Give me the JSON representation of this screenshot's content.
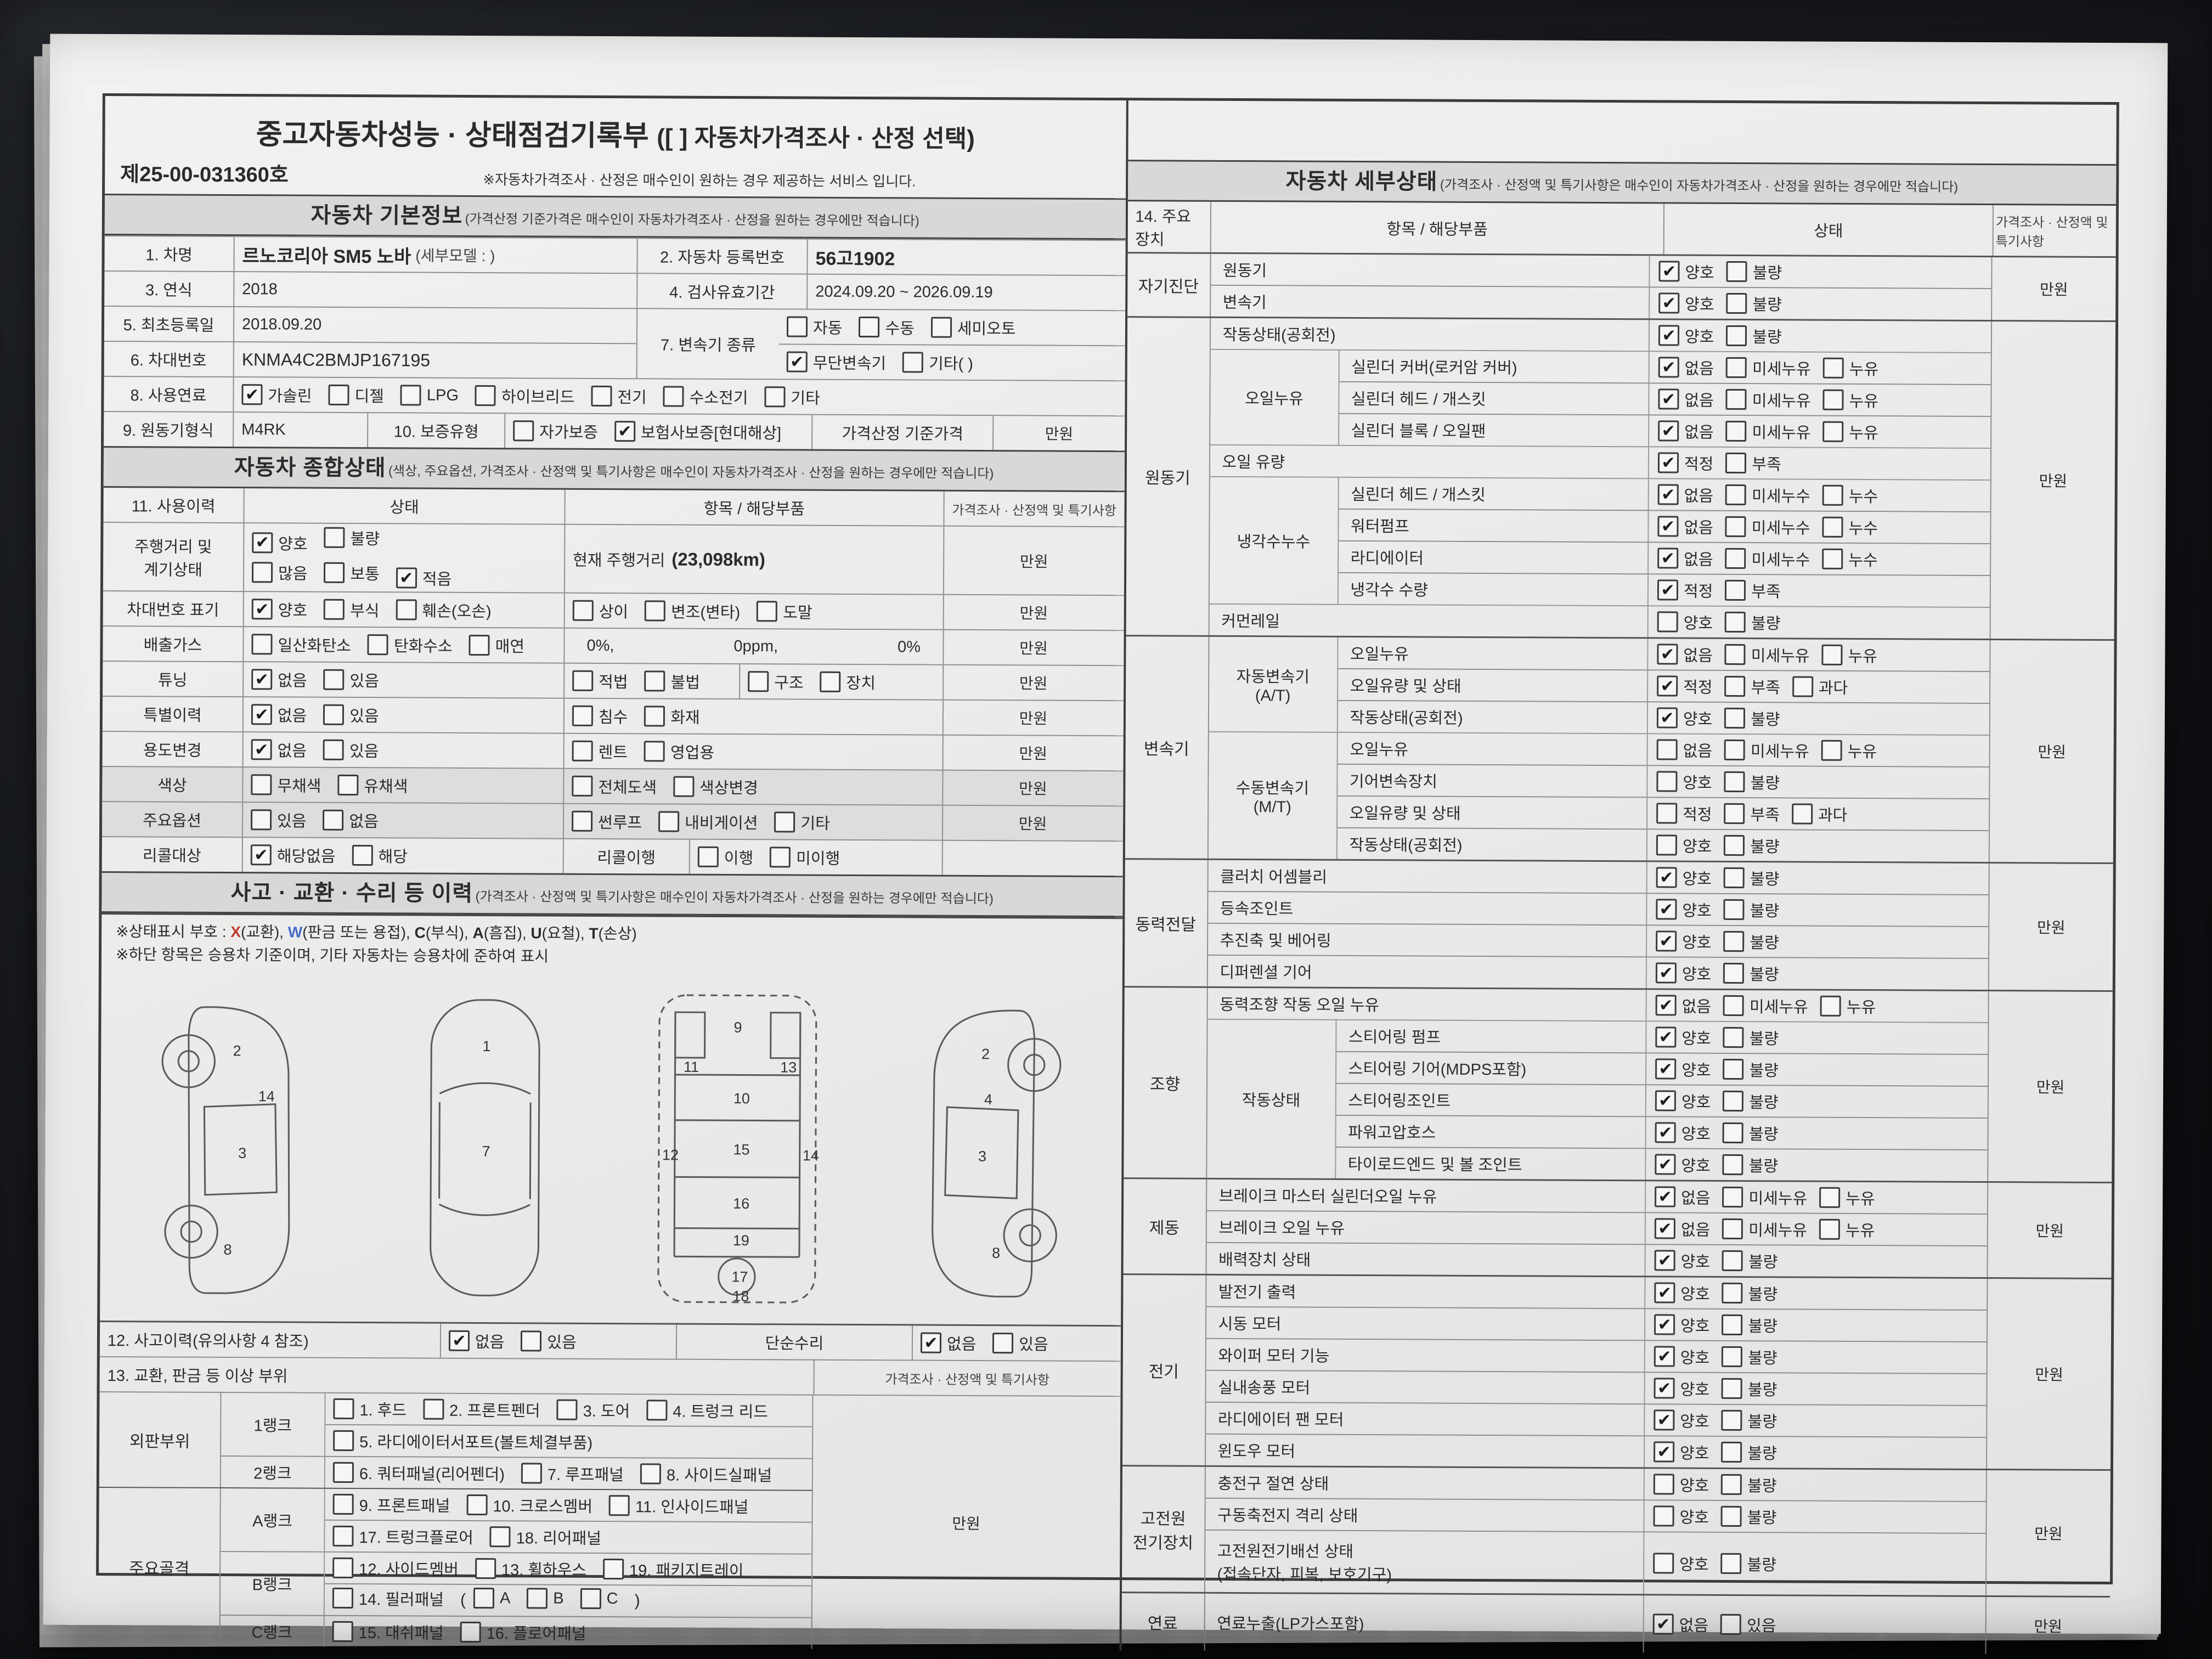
{
  "meta": {
    "doc_no": "제25-00-031360호",
    "title": "중고자동차성능 · 상태점검기록부",
    "title_bracket": "([  ] 자동차가격조사 · 산정 선택)",
    "service_note": "※자동차가격조사 · 산정은 매수인이 원하는 경우 제공하는 서비스 입니다.",
    "price_unit": "만원",
    "accent_red": "#c0392b",
    "accent_blue": "#4a6bc9",
    "paper_color": "#ededeb",
    "band_color": "#d8d8d6"
  },
  "basic": {
    "header": "자동차 기본정보",
    "header_note": "(가격산정 기준가격은 매수인이 자동차가격조사 · 산정을 원하는 경우에만 적습니다)",
    "car_name_label": "1. 차명",
    "car_name": "르노코리아 SM5 노바",
    "car_name_sub": "(세부모델 : )",
    "reg_label": "2. 자동차 등록번호",
    "reg_no": "56고1902",
    "year_label": "3. 연식",
    "year": "2018",
    "insp_label": "4. 검사유효기간",
    "insp": "2024.09.20 ~ 2026.09.19",
    "first_label": "5. 최초등록일",
    "first_reg": "2018.09.20",
    "vin_label": "6. 차대번호",
    "vin": "KNMA4C2BMJP167195",
    "trans_label": "7. 변속기 종류",
    "trans_opts1": [
      {
        "t": "자동",
        "c": false
      },
      {
        "t": "수동",
        "c": false
      },
      {
        "t": "세미오토",
        "c": false
      }
    ],
    "trans_opts2": [
      {
        "t": "무단변속기",
        "c": true
      },
      {
        "t": "기타(  )",
        "c": false
      }
    ],
    "fuel_label": "8. 사용연료",
    "fuel_opts": [
      {
        "t": "가솔린",
        "c": true
      },
      {
        "t": "디젤",
        "c": false
      },
      {
        "t": "LPG",
        "c": false
      },
      {
        "t": "하이브리드",
        "c": false
      },
      {
        "t": "전기",
        "c": false
      },
      {
        "t": "수소전기",
        "c": false
      },
      {
        "t": "기타",
        "c": false
      }
    ],
    "engine_label": "9. 원동기형식",
    "engine": "M4RK",
    "warranty_label": "10. 보증유형",
    "warranty_opts": [
      {
        "t": "자가보증",
        "c": false
      },
      {
        "t": "보험사보증[현대해상]",
        "c": true
      }
    ],
    "base_price_label": "가격산정 기준가격"
  },
  "comp": {
    "header": "자동차 종합상태",
    "header_note": "(색상, 주요옵션, 가격조사 · 산정액 및 특기사항은 매수인이 자동차가격조사 · 산정을 원하는 경우에만 적습니다)",
    "col1": "11. 사용이력",
    "col2": "상태",
    "col3": "항목 / 해당부품",
    "col4": "가격조사 · 산정액 및 특기사항",
    "mileage_label1": "주행거리 및",
    "mileage_label2": "계기상태",
    "mileage_opts1": [
      {
        "t": "양호",
        "c": true
      },
      {
        "t": "불량",
        "c": false
      }
    ],
    "mileage_opts2": [
      {
        "t": "많음",
        "c": false
      },
      {
        "t": "보통",
        "c": false
      },
      {
        "t": "적음",
        "c": true
      }
    ],
    "mileage_item_label": "현재 주행거리",
    "mileage_value": "(23,098km)",
    "vin_label": "차대번호 표기",
    "vin_opts1": [
      {
        "t": "양호",
        "c": true
      },
      {
        "t": "부식",
        "c": false
      },
      {
        "t": "훼손(오손)",
        "c": false
      }
    ],
    "vin_opts2": [
      {
        "t": "상이",
        "c": false
      },
      {
        "t": "변조(변타)",
        "c": false
      },
      {
        "t": "도말",
        "c": false
      }
    ],
    "emission_label": "배출가스",
    "emission_opts": [
      {
        "t": "일산화탄소",
        "c": false
      },
      {
        "t": "탄화수소",
        "c": false
      },
      {
        "t": "매연",
        "c": false
      }
    ],
    "emission_v1": "0%,",
    "emission_v2": "0ppm,",
    "emission_v3": "0%",
    "tuning_label": "튜닝",
    "tuning_opts": [
      {
        "t": "없음",
        "c": true
      },
      {
        "t": "있음",
        "c": false
      }
    ],
    "tuning_opts2": [
      {
        "t": "적법",
        "c": false
      },
      {
        "t": "불법",
        "c": false
      }
    ],
    "tuning_opts3": [
      {
        "t": "구조",
        "c": false
      },
      {
        "t": "장치",
        "c": false
      }
    ],
    "special_label": "특별이력",
    "special_opts": [
      {
        "t": "없음",
        "c": true
      },
      {
        "t": "있음",
        "c": false
      }
    ],
    "special_opts2": [
      {
        "t": "침수",
        "c": false
      },
      {
        "t": "화재",
        "c": false
      }
    ],
    "usage_label": "용도변경",
    "usage_opts": [
      {
        "t": "없음",
        "c": true
      },
      {
        "t": "있음",
        "c": false
      }
    ],
    "usage_opts2": [
      {
        "t": "렌트",
        "c": false
      },
      {
        "t": "영업용",
        "c": false
      }
    ],
    "color_label": "색상",
    "color_opts": [
      {
        "t": "무채색",
        "c": false
      },
      {
        "t": "유채색",
        "c": false
      }
    ],
    "color_opts2": [
      {
        "t": "전체도색",
        "c": false
      },
      {
        "t": "색상변경",
        "c": false
      }
    ],
    "option_label": "주요옵션",
    "option_opts": [
      {
        "t": "있음",
        "c": false
      },
      {
        "t": "없음",
        "c": false
      }
    ],
    "option_opts2": [
      {
        "t": "썬루프",
        "c": false
      },
      {
        "t": "내비게이션",
        "c": false
      },
      {
        "t": "기타",
        "c": false
      }
    ],
    "recall_label": "리콜대상",
    "recall_opts": [
      {
        "t": "해당없음",
        "c": true
      },
      {
        "t": "해당",
        "c": false
      }
    ],
    "recall_item_label": "리콜이행",
    "recall_opts2": [
      {
        "t": "이행",
        "c": false
      },
      {
        "t": "미이행",
        "c": false
      }
    ]
  },
  "accident": {
    "header": "사고 · 교환 · 수리 등 이력",
    "header_note": "(가격조사 · 산정액 및 특기사항은 매수인이 자동차가격조사 · 산정을 원하는 경우에만 적습니다)",
    "note1_prefix": "※상태표시 부호 : ",
    "codes": [
      {
        "c": "X",
        "d": "(교환), "
      },
      {
        "c": "W",
        "d": "(판금 또는 용접), "
      },
      {
        "c": "C",
        "d": "(부식), "
      },
      {
        "c": "A",
        "d": "(흠집), "
      },
      {
        "c": "U",
        "d": "(요철), "
      },
      {
        "c": "T",
        "d": "(손상)"
      }
    ],
    "note2": "※하단 항목은 승용차 기준이며, 기타 자동차는 승용차에 준하여 표시",
    "row12_label": "12. 사고이력(유의사항 4 참조)",
    "row12_opts": [
      {
        "t": "없음",
        "c": true
      },
      {
        "t": "있음",
        "c": false
      }
    ],
    "simple_label": "단순수리",
    "simple_opts": [
      {
        "t": "없음",
        "c": true
      },
      {
        "t": "있음",
        "c": false
      }
    ],
    "row13_label": "13. 교환, 판금 등 이상 부위",
    "price_header": "가격조사 · 산정액 및 특기사항",
    "panel_label": "외판부위",
    "rank1_label": "1랭크",
    "rank1_opts": [
      {
        "t": "1. 후드",
        "c": false
      },
      {
        "t": "2. 프론트펜더",
        "c": false
      },
      {
        "t": "3. 도어",
        "c": false
      },
      {
        "t": "4. 트렁크 리드",
        "c": false
      }
    ],
    "rank1_opts2": [
      {
        "t": "5. 라디에이터서포트(볼트체결부품)",
        "c": false
      }
    ],
    "rank2_label": "2랭크",
    "rank2_opts": [
      {
        "t": "6. 쿼터패널(리어펜더)",
        "c": false
      },
      {
        "t": "7. 루프패널",
        "c": false
      },
      {
        "t": "8. 사이드실패널",
        "c": false
      }
    ],
    "frame_label": "주요골격",
    "rankA_label": "A랭크",
    "rankA_opts": [
      {
        "t": "9. 프론트패널",
        "c": false
      },
      {
        "t": "10. 크로스멤버",
        "c": false
      },
      {
        "t": "11. 인사이드패널",
        "c": false
      }
    ],
    "rankA_opts2": [
      {
        "t": "17. 트렁크플로어",
        "c": false
      },
      {
        "t": "18. 리어패널",
        "c": false
      }
    ],
    "rankB_label": "B랭크",
    "rankB_opts": [
      {
        "t": "12. 사이드멤버",
        "c": false
      },
      {
        "t": "13. 휠하우스",
        "c": false
      },
      {
        "t": "19. 패키지트레이",
        "c": false
      }
    ],
    "rankB_opts2": [
      {
        "t": "14. 필러패널",
        "c": false
      }
    ],
    "paren_open": "(",
    "paren_close": ")",
    "rankB_abc": [
      {
        "t": "A",
        "c": false
      },
      {
        "t": "B",
        "c": false
      },
      {
        "t": "C",
        "c": false
      }
    ],
    "rankC_label": "C랭크",
    "rankC_opts": [
      {
        "t": "15. 대쉬패널",
        "c": false
      },
      {
        "t": "16. 플로어패널",
        "c": false
      }
    ],
    "diagram_numbers": {
      "side_left": [
        "2",
        "8",
        "3",
        "14"
      ],
      "top": [
        "1",
        "7"
      ],
      "under": [
        "9",
        "11",
        "13",
        "12",
        "10",
        "15",
        "16",
        "14",
        "19",
        "17",
        "18"
      ],
      "side_right": [
        "2",
        "3",
        "8",
        "4"
      ]
    }
  },
  "detail": {
    "header": "자동차 세부상태",
    "header_note": "(가격조사 · 산정액 및 특기사항은 매수인이 자동차가격조사 · 산정을 원하는 경우에만 적습니다)",
    "col_device": "14. 주요장치",
    "col_item": "항목 / 해당부품",
    "col_state": "상태",
    "col_price": "가격조사 · 산정액 및 특기사항",
    "selfdiag": {
      "label": "자기진단",
      "engine_label": "원동기",
      "engine_opts": [
        {
          "t": "양호",
          "c": true
        },
        {
          "t": "불량",
          "c": false
        }
      ],
      "trans_label": "변속기",
      "trans_opts": [
        {
          "t": "양호",
          "c": true
        },
        {
          "t": "불량",
          "c": false
        }
      ],
      "price": "만원"
    },
    "engine": {
      "label": "원동기",
      "idle_label": "작동상태(공회전)",
      "idle_opts": [
        {
          "t": "양호",
          "c": true
        },
        {
          "t": "불량",
          "c": false
        }
      ],
      "oil_label": "오일누유",
      "cyl_cover_label": "실린더 커버(로커암 커버)",
      "cyl_cover_opts": [
        {
          "t": "없음",
          "c": true
        },
        {
          "t": "미세누유",
          "c": false
        },
        {
          "t": "누유",
          "c": false
        }
      ],
      "cyl_head_label": "실린더 헤드 / 개스킷",
      "cyl_head_opts": [
        {
          "t": "없음",
          "c": true
        },
        {
          "t": "미세누유",
          "c": false
        },
        {
          "t": "누유",
          "c": false
        }
      ],
      "cyl_block_label": "실린더 블록 / 오일팬",
      "cyl_block_opts": [
        {
          "t": "없음",
          "c": true
        },
        {
          "t": "미세누유",
          "c": false
        },
        {
          "t": "누유",
          "c": false
        }
      ],
      "oil_level_label": "오일 유량",
      "oil_level_opts": [
        {
          "t": "적정",
          "c": true
        },
        {
          "t": "부족",
          "c": false
        }
      ],
      "coolant_label": "냉각수누수",
      "c_head_label": "실린더 헤드 / 개스킷",
      "c_head_opts": [
        {
          "t": "없음",
          "c": true
        },
        {
          "t": "미세누수",
          "c": false
        },
        {
          "t": "누수",
          "c": false
        }
      ],
      "pump_label": "워터펌프",
      "pump_opts": [
        {
          "t": "없음",
          "c": true
        },
        {
          "t": "미세누수",
          "c": false
        },
        {
          "t": "누수",
          "c": false
        }
      ],
      "radiator_label": "라디에이터",
      "radiator_opts": [
        {
          "t": "없음",
          "c": true
        },
        {
          "t": "미세누수",
          "c": false
        },
        {
          "t": "누수",
          "c": false
        }
      ],
      "c_level_label": "냉각수 수량",
      "c_level_opts": [
        {
          "t": "적정",
          "c": true
        },
        {
          "t": "부족",
          "c": false
        }
      ],
      "rail_label": "커먼레일",
      "rail_opts": [
        {
          "t": "양호",
          "c": false
        },
        {
          "t": "불량",
          "c": false
        }
      ],
      "price": "만원"
    },
    "gearbox": {
      "label": "변속기",
      "at_label": "자동변속기",
      "at_label2": "(A/T)",
      "at_leak_label": "오일누유",
      "at_leak_opts": [
        {
          "t": "없음",
          "c": true
        },
        {
          "t": "미세누유",
          "c": false
        },
        {
          "t": "누유",
          "c": false
        }
      ],
      "at_level_label": "오일유량 및 상태",
      "at_level_opts": [
        {
          "t": "적정",
          "c": true
        },
        {
          "t": "부족",
          "c": false
        },
        {
          "t": "과다",
          "c": false
        }
      ],
      "at_idle_label": "작동상태(공회전)",
      "at_idle_opts": [
        {
          "t": "양호",
          "c": true
        },
        {
          "t": "불량",
          "c": false
        }
      ],
      "mt_label": "수동변속기",
      "mt_label2": "(M/T)",
      "mt_leak_label": "오일누유",
      "mt_leak_opts": [
        {
          "t": "없음",
          "c": false
        },
        {
          "t": "미세누유",
          "c": false
        },
        {
          "t": "누유",
          "c": false
        }
      ],
      "mt_gear_label": "기어변속장치",
      "mt_gear_opts": [
        {
          "t": "양호",
          "c": false
        },
        {
          "t": "불량",
          "c": false
        }
      ],
      "mt_level_label": "오일유량 및 상태",
      "mt_level_opts": [
        {
          "t": "적정",
          "c": false
        },
        {
          "t": "부족",
          "c": false
        },
        {
          "t": "과다",
          "c": false
        }
      ],
      "mt_idle_label": "작동상태(공회전)",
      "mt_idle_opts": [
        {
          "t": "양호",
          "c": false
        },
        {
          "t": "불량",
          "c": false
        }
      ],
      "price": "만원"
    },
    "power": {
      "label": "동력전달",
      "clutch_label": "클러치 어셈블리",
      "clutch_opts": [
        {
          "t": "양호",
          "c": true
        },
        {
          "t": "불량",
          "c": false
        }
      ],
      "cv_label": "등속조인트",
      "cv_opts": [
        {
          "t": "양호",
          "c": true
        },
        {
          "t": "불량",
          "c": false
        }
      ],
      "shaft_label": "추진축 및 베어링",
      "shaft_opts": [
        {
          "t": "양호",
          "c": true
        },
        {
          "t": "불량",
          "c": false
        }
      ],
      "diff_label": "디퍼렌셜 기어",
      "diff_opts": [
        {
          "t": "양호",
          "c": true
        },
        {
          "t": "불량",
          "c": false
        }
      ],
      "price": "만원"
    },
    "steering": {
      "label": "조향",
      "leak_label": "동력조향 작동 오일 누유",
      "leak_opts": [
        {
          "t": "없음",
          "c": true
        },
        {
          "t": "미세누유",
          "c": false
        },
        {
          "t": "누유",
          "c": false
        }
      ],
      "state_label": "작동상태",
      "pump_label": "스티어링 펌프",
      "pump_opts": [
        {
          "t": "양호",
          "c": true
        },
        {
          "t": "불량",
          "c": false
        }
      ],
      "gear_label": "스티어링 기어(MDPS포함)",
      "gear_opts": [
        {
          "t": "양호",
          "c": true
        },
        {
          "t": "불량",
          "c": false
        }
      ],
      "joint_label": "스티어링조인트",
      "joint_opts": [
        {
          "t": "양호",
          "c": true
        },
        {
          "t": "불량",
          "c": false
        }
      ],
      "hose_label": "파워고압호스",
      "hose_opts": [
        {
          "t": "양호",
          "c": true
        },
        {
          "t": "불량",
          "c": false
        }
      ],
      "tierod_label": "타이로드엔드 및 볼 조인트",
      "tierod_opts": [
        {
          "t": "양호",
          "c": true
        },
        {
          "t": "불량",
          "c": false
        }
      ],
      "price": "만원"
    },
    "brake": {
      "label": "제동",
      "master_label": "브레이크 마스터 실린더오일 누유",
      "master_opts": [
        {
          "t": "없음",
          "c": true
        },
        {
          "t": "미세누유",
          "c": false
        },
        {
          "t": "누유",
          "c": false
        }
      ],
      "oil_label": "브레이크 오일 누유",
      "oil_opts": [
        {
          "t": "없음",
          "c": true
        },
        {
          "t": "미세누유",
          "c": false
        },
        {
          "t": "누유",
          "c": false
        }
      ],
      "booster_label": "배력장치 상태",
      "booster_opts": [
        {
          "t": "양호",
          "c": true
        },
        {
          "t": "불량",
          "c": false
        }
      ],
      "price": "만원"
    },
    "electric": {
      "label": "전기",
      "alt_label": "발전기 출력",
      "alt_opts": [
        {
          "t": "양호",
          "c": true
        },
        {
          "t": "불량",
          "c": false
        }
      ],
      "start_label": "시동 모터",
      "start_opts": [
        {
          "t": "양호",
          "c": true
        },
        {
          "t": "불량",
          "c": false
        }
      ],
      "wiper_label": "와이퍼 모터 기능",
      "wiper_opts": [
        {
          "t": "양호",
          "c": true
        },
        {
          "t": "불량",
          "c": false
        }
      ],
      "blower_label": "실내송풍 모터",
      "blower_opts": [
        {
          "t": "양호",
          "c": true
        },
        {
          "t": "불량",
          "c": false
        }
      ],
      "fan_label": "라디에이터 팬 모터",
      "fan_opts": [
        {
          "t": "양호",
          "c": true
        },
        {
          "t": "불량",
          "c": false
        }
      ],
      "window_label": "윈도우 모터",
      "window_opts": [
        {
          "t": "양호",
          "c": true
        },
        {
          "t": "불량",
          "c": false
        }
      ],
      "price": "만원"
    },
    "hv": {
      "label1": "고전원",
      "label2": "전기장치",
      "charge_label": "충전구 절연 상태",
      "charge_opts": [
        {
          "t": "양호",
          "c": false
        },
        {
          "t": "불량",
          "c": false
        }
      ],
      "battery_label": "구동축전지 격리 상태",
      "battery_opts": [
        {
          "t": "양호",
          "c": false
        },
        {
          "t": "불량",
          "c": false
        }
      ],
      "wiring_label": "고전원전기배선 상태",
      "wiring_sub": "(접속단자, 피복, 보호기구)",
      "wiring_opts": [
        {
          "t": "양호",
          "c": false
        },
        {
          "t": "불량",
          "c": false
        }
      ],
      "price": "만원"
    },
    "fuel": {
      "label": "연료",
      "leak_label": "연료누출(LP가스포함)",
      "leak_opts": [
        {
          "t": "없음",
          "c": true
        },
        {
          "t": "있음",
          "c": false
        }
      ],
      "price": "만원"
    }
  }
}
